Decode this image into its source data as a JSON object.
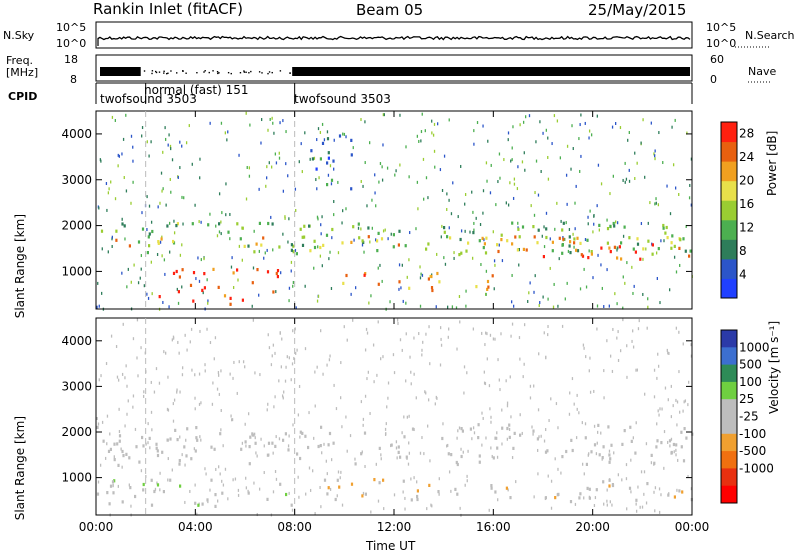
{
  "header": {
    "station": "Rankin Inlet (fitACF)",
    "beam": "Beam 05",
    "date": "25/May/2015"
  },
  "panel_labels": {
    "nsky": "N.Sky",
    "nsearch": "N.Search",
    "freq_line1": "Freq.",
    "freq_line2": "[MHz]",
    "nave": "Nave",
    "cpid": "CPID",
    "nsky_top": "10^5",
    "nsky_bottom": "10^0",
    "nsearch_top": "10^5",
    "nsearch_bottom": "10^0",
    "freq_top": "18",
    "freq_bottom": "8",
    "nave_top": "60",
    "nave_bottom": "0"
  },
  "cpid_segments": [
    {
      "label": "twofsound 3503",
      "start_h": 0.0
    },
    {
      "label": "normal (fast) 151",
      "start_h": 2.0
    },
    {
      "label": "twofsound 3503",
      "start_h": 8.0
    }
  ],
  "colors": {
    "power": [
      "#2040ff",
      "#2b55c9",
      "#2e7d5a",
      "#4caf50",
      "#9acd32",
      "#e8e04a",
      "#f0a020",
      "#e86010",
      "#ff2010"
    ],
    "velocity": [
      "#2b3aa8",
      "#3c6fd0",
      "#2e8b57",
      "#6fcf40",
      "#bdbdbd",
      "#bdbdbd",
      "#f0a030",
      "#f07010",
      "#e83010",
      "#ff0000"
    ]
  },
  "chart_data": [
    {
      "type": "heatmap",
      "title": "",
      "xlabel": "Time UT",
      "ylabel": "Slant Range [km]",
      "xlim": [
        0,
        24
      ],
      "ylim": [
        180,
        4500
      ],
      "x_ticks": [
        "00:00",
        "04:00",
        "08:00",
        "12:00",
        "16:00",
        "20:00",
        "00:00"
      ],
      "y_ticks": [
        "1000",
        "2000",
        "3000",
        "4000"
      ],
      "colorbar": {
        "label": "Power [dB]",
        "ticks": [
          "4",
          "8",
          "12",
          "16",
          "20",
          "24",
          "28"
        ],
        "range": [
          0,
          30
        ]
      },
      "regions": [
        {
          "t0": 0.0,
          "t1": 24.0,
          "r0": 1400,
          "r1": 2100,
          "level": 12
        },
        {
          "t0": 0.0,
          "t1": 24.0,
          "r0": 1500,
          "r1": 1800,
          "level": 20
        },
        {
          "t0": 2.5,
          "t1": 7.5,
          "r0": 300,
          "r1": 1100,
          "level": 28
        },
        {
          "t0": 9.0,
          "t1": 16.0,
          "r0": 600,
          "r1": 1000,
          "level": 22
        },
        {
          "t0": 16.0,
          "t1": 24.0,
          "r0": 1300,
          "r1": 1700,
          "level": 26
        },
        {
          "t0": 8.5,
          "t1": 10.5,
          "r0": 2800,
          "r1": 4000,
          "level": 6
        }
      ]
    },
    {
      "type": "heatmap",
      "title": "",
      "xlabel": "Time UT",
      "ylabel": "Slant Range [km]",
      "xlim": [
        0,
        24
      ],
      "ylim": [
        180,
        4500
      ],
      "x_ticks": [
        "00:00",
        "04:00",
        "08:00",
        "12:00",
        "16:00",
        "20:00",
        "00:00"
      ],
      "y_ticks": [
        "1000",
        "2000",
        "3000",
        "4000"
      ],
      "colorbar": {
        "label": "Velocity [m s⁻¹]",
        "ticks": [
          "1000",
          "500",
          "100",
          "25",
          "-25",
          "-100",
          "-500",
          "-1000"
        ],
        "range": [
          -1000,
          1000
        ]
      },
      "regions": [
        {
          "t0": 0.0,
          "t1": 24.0,
          "r0": 1300,
          "r1": 2200,
          "level": 0
        },
        {
          "t0": 0.0,
          "t1": 8.0,
          "r0": 400,
          "r1": 1000,
          "level": 100
        },
        {
          "t0": 9.0,
          "t1": 16.0,
          "r0": 500,
          "r1": 1000,
          "level": -100
        },
        {
          "t0": 16.0,
          "t1": 24.0,
          "r0": 500,
          "r1": 1000,
          "level": -100
        }
      ]
    }
  ]
}
